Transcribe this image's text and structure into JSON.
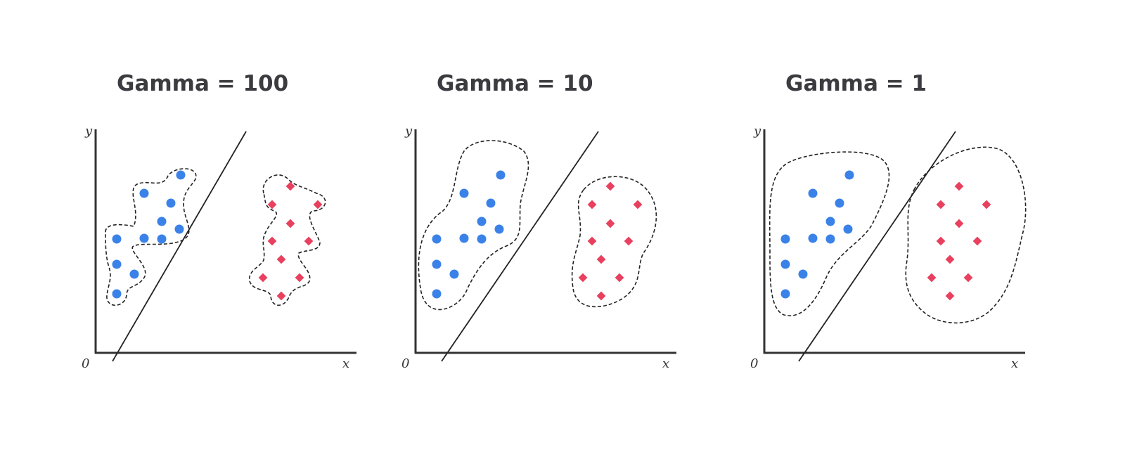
{
  "panels": [
    {
      "title": "Gamma = 100",
      "y_label": "y",
      "x_label": "x",
      "origin_label": "0"
    },
    {
      "title": "Gamma = 10",
      "y_label": "y",
      "x_label": "x",
      "origin_label": "0"
    },
    {
      "title": "Gamma = 1",
      "y_label": "y",
      "x_label": "x",
      "origin_label": "0"
    }
  ]
}
